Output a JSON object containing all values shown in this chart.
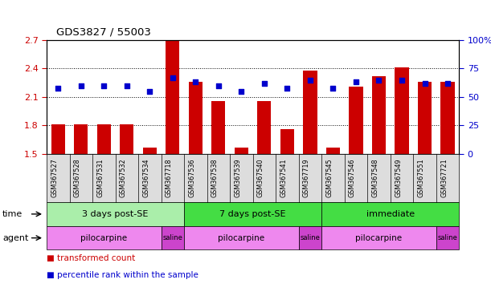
{
  "title": "GDS3827 / 55003",
  "samples": [
    "GSM367527",
    "GSM367528",
    "GSM367531",
    "GSM367532",
    "GSM367534",
    "GSM367718",
    "GSM367536",
    "GSM367538",
    "GSM367539",
    "GSM367540",
    "GSM367541",
    "GSM367719",
    "GSM367545",
    "GSM367546",
    "GSM367548",
    "GSM367549",
    "GSM367551",
    "GSM367721"
  ],
  "bar_values": [
    1.81,
    1.81,
    1.81,
    1.81,
    1.57,
    2.7,
    2.26,
    2.06,
    1.57,
    2.06,
    1.76,
    2.38,
    1.57,
    2.21,
    2.32,
    2.41,
    2.26,
    2.26
  ],
  "dot_values": [
    58,
    60,
    60,
    60,
    55,
    67,
    63,
    60,
    55,
    62,
    58,
    65,
    58,
    63,
    65,
    65,
    62,
    62
  ],
  "bar_color": "#cc0000",
  "dot_color": "#0000cc",
  "ylim_left": [
    1.5,
    2.7
  ],
  "ylim_right": [
    0,
    100
  ],
  "yticks_left": [
    1.5,
    1.8,
    2.1,
    2.4,
    2.7
  ],
  "yticks_right": [
    0,
    25,
    50,
    75,
    100
  ],
  "ytick_labels_left": [
    "1.5",
    "1.8",
    "2.1",
    "2.4",
    "2.7"
  ],
  "ytick_labels_right": [
    "0",
    "25",
    "50",
    "75",
    "100%"
  ],
  "groups": [
    {
      "label": "3 days post-SE",
      "start": 0,
      "end": 5,
      "color": "#aaeeaa"
    },
    {
      "label": "7 days post-SE",
      "start": 6,
      "end": 11,
      "color": "#44dd44"
    },
    {
      "label": "immediate",
      "start": 12,
      "end": 17,
      "color": "#44dd44"
    }
  ],
  "agents": [
    {
      "label": "pilocarpine",
      "start": 0,
      "end": 4,
      "color": "#ee88ee"
    },
    {
      "label": "saline",
      "start": 5,
      "end": 5,
      "color": "#cc44cc"
    },
    {
      "label": "pilocarpine",
      "start": 6,
      "end": 10,
      "color": "#ee88ee"
    },
    {
      "label": "saline",
      "start": 11,
      "end": 11,
      "color": "#cc44cc"
    },
    {
      "label": "pilocarpine",
      "start": 12,
      "end": 16,
      "color": "#ee88ee"
    },
    {
      "label": "saline",
      "start": 17,
      "end": 17,
      "color": "#cc44cc"
    }
  ],
  "time_label": "time",
  "agent_label": "agent",
  "legend_bar": "transformed count",
  "legend_dot": "percentile rank within the sample",
  "tick_label_color_left": "#cc0000",
  "tick_label_color_right": "#0000cc",
  "sample_bg_color": "#dddddd",
  "plot_bg_color": "#ffffff"
}
